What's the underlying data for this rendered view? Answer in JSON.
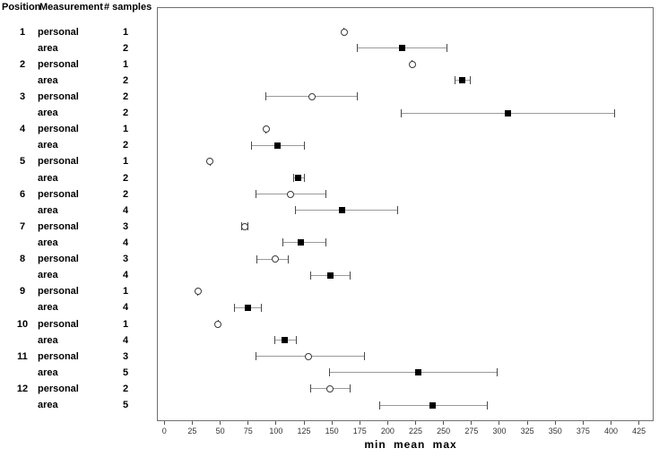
{
  "style": {
    "bar_line_color": "#9a9a9a",
    "cap_color": "#4a4a4a",
    "square_color": "#000000",
    "circle_stroke_color": "#3a3a3a",
    "plot_border_color": "#6f6f6f",
    "background": "#ffffff"
  },
  "chart_data": {
    "type": "scatter",
    "variant": "min-mean-max horizontal error bars",
    "title": "",
    "xlabel": "min mean max",
    "ylabel": "",
    "xlim": [
      0,
      440
    ],
    "x_tick_step": 25,
    "x_ticks": [
      0,
      25,
      50,
      75,
      100,
      125,
      150,
      175,
      200,
      225,
      250,
      275,
      300,
      325,
      350,
      375,
      400,
      425
    ],
    "grid": false,
    "legend": "none",
    "marker_semantics": {
      "personal": "open-circle",
      "area": "filled-square",
      "single_sample": "marker with coincident whisker caps (min = mean = max)"
    },
    "table_headers": {
      "position": "Position",
      "measurement": "Measurement",
      "samples": "# samples"
    },
    "rows": [
      {
        "position": "1",
        "measurement": "personal",
        "samples": "1",
        "min": 161,
        "mean": 161,
        "max": 161
      },
      {
        "position": "",
        "measurement": "area",
        "samples": "2",
        "min": 173,
        "mean": 213,
        "max": 253
      },
      {
        "position": "2",
        "measurement": "personal",
        "samples": "1",
        "min": 222,
        "mean": 222,
        "max": 222
      },
      {
        "position": "",
        "measurement": "area",
        "samples": "2",
        "min": 260,
        "mean": 267,
        "max": 274
      },
      {
        "position": "3",
        "measurement": "personal",
        "samples": "2",
        "min": 91,
        "mean": 132,
        "max": 173
      },
      {
        "position": "",
        "measurement": "area",
        "samples": "2",
        "min": 212,
        "mean": 308,
        "max": 403
      },
      {
        "position": "4",
        "measurement": "personal",
        "samples": "1",
        "min": 91,
        "mean": 91,
        "max": 91
      },
      {
        "position": "",
        "measurement": "area",
        "samples": "2",
        "min": 78,
        "mean": 101,
        "max": 125
      },
      {
        "position": "5",
        "measurement": "personal",
        "samples": "1",
        "min": 41,
        "mean": 41,
        "max": 41
      },
      {
        "position": "",
        "measurement": "area",
        "samples": "2",
        "min": 116,
        "mean": 120,
        "max": 125
      },
      {
        "position": "6",
        "measurement": "personal",
        "samples": "2",
        "min": 82,
        "mean": 113,
        "max": 145
      },
      {
        "position": "",
        "measurement": "area",
        "samples": "4",
        "min": 117,
        "mean": 159,
        "max": 209
      },
      {
        "position": "7",
        "measurement": "personal",
        "samples": "3",
        "min": 69,
        "mean": 72,
        "max": 75
      },
      {
        "position": "",
        "measurement": "area",
        "samples": "4",
        "min": 106,
        "mean": 122,
        "max": 145
      },
      {
        "position": "8",
        "measurement": "personal",
        "samples": "3",
        "min": 83,
        "mean": 99,
        "max": 111
      },
      {
        "position": "",
        "measurement": "area",
        "samples": "4",
        "min": 131,
        "mean": 149,
        "max": 166
      },
      {
        "position": "9",
        "measurement": "personal",
        "samples": "1",
        "min": 30,
        "mean": 30,
        "max": 30
      },
      {
        "position": "",
        "measurement": "area",
        "samples": "4",
        "min": 63,
        "mean": 75,
        "max": 87
      },
      {
        "position": "10",
        "measurement": "personal",
        "samples": "1",
        "min": 48,
        "mean": 48,
        "max": 48
      },
      {
        "position": "",
        "measurement": "area",
        "samples": "4",
        "min": 99,
        "mean": 108,
        "max": 118
      },
      {
        "position": "11",
        "measurement": "personal",
        "samples": "3",
        "min": 82,
        "mean": 129,
        "max": 179
      },
      {
        "position": "",
        "measurement": "area",
        "samples": "5",
        "min": 148,
        "mean": 227,
        "max": 298
      },
      {
        "position": "12",
        "measurement": "personal",
        "samples": "2",
        "min": 131,
        "mean": 148,
        "max": 166
      },
      {
        "position": "",
        "measurement": "area",
        "samples": "5",
        "min": 193,
        "mean": 240,
        "max": 289
      }
    ]
  }
}
